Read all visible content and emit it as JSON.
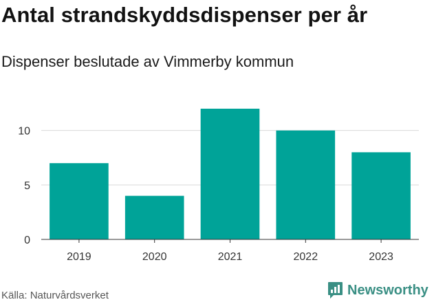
{
  "header": {
    "title": "Antal strandskyddsdispenser per år",
    "subtitle": "Dispenser beslutade av Vimmerby kommun"
  },
  "footer": {
    "source": "Källa: Naturvårdsverket",
    "brand": "Newsworthy",
    "brand_icon": "newsworthy-logo-icon"
  },
  "colors": {
    "bar": "#00a398",
    "brand": "#3a8f84"
  },
  "chart_data": {
    "type": "bar",
    "title": "Antal strandskyddsdispenser per år",
    "subtitle": "Dispenser beslutade av Vimmerby kommun",
    "categories": [
      "2019",
      "2020",
      "2021",
      "2022",
      "2023"
    ],
    "values": [
      7,
      4,
      12,
      10,
      8
    ],
    "xlabel": "",
    "ylabel": "",
    "ylim": [
      0,
      12
    ],
    "yticks": [
      0,
      5,
      10
    ],
    "grid": true,
    "legend": "none"
  }
}
